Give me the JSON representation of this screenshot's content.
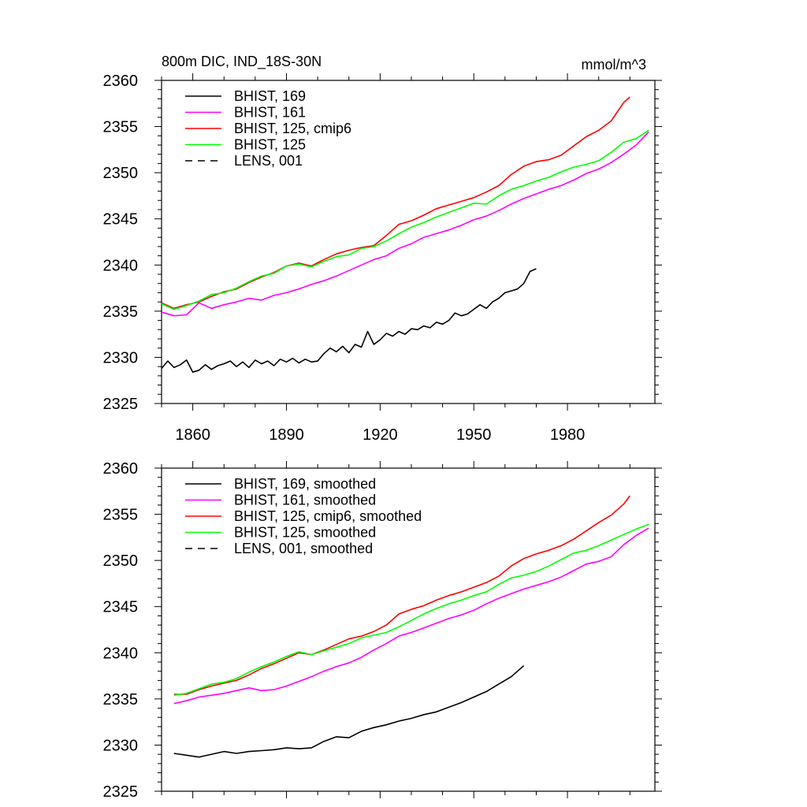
{
  "chart_data": [
    {
      "type": "line",
      "title": "800m DIC, IND_18S-30N",
      "units": "mmol/m^3",
      "xlim": [
        1850,
        2008
      ],
      "ylim": [
        2325,
        2360
      ],
      "x_ticks": [
        1860,
        1890,
        1920,
        1950,
        1980
      ],
      "y_ticks": [
        2325,
        2330,
        2335,
        2340,
        2345,
        2350,
        2355,
        2360
      ],
      "legend_position": "top-left",
      "series": [
        {
          "name": "BHIST, 169",
          "color": "#000000",
          "dash": "solid",
          "x": [
            1850,
            1852,
            1854,
            1856,
            1858,
            1860,
            1862,
            1864,
            1866,
            1868,
            1870,
            1872,
            1874,
            1876,
            1878,
            1880,
            1882,
            1884,
            1886,
            1888,
            1890,
            1892,
            1894,
            1896,
            1898,
            1900,
            1902,
            1904,
            1906,
            1908,
            1910,
            1912,
            1914,
            1916,
            1918,
            1920,
            1922,
            1924,
            1926,
            1928,
            1930,
            1932,
            1934,
            1936,
            1938,
            1940,
            1942,
            1944,
            1946,
            1948,
            1950,
            1952,
            1954,
            1956,
            1958,
            1960,
            1962,
            1964,
            1966,
            1968,
            1970
          ],
          "values": [
            2328.8,
            2329.6,
            2328.9,
            2329.2,
            2329.7,
            2328.4,
            2328.6,
            2329.2,
            2328.7,
            2329.1,
            2329.3,
            2329.6,
            2329.0,
            2329.5,
            2328.9,
            2329.7,
            2329.3,
            2329.6,
            2329.1,
            2329.8,
            2329.5,
            2329.9,
            2329.4,
            2329.8,
            2329.5,
            2329.6,
            2330.4,
            2331.0,
            2330.6,
            2331.2,
            2330.5,
            2331.4,
            2331.1,
            2332.8,
            2331.4,
            2331.9,
            2332.6,
            2332.3,
            2332.8,
            2332.5,
            2333.1,
            2333.0,
            2333.4,
            2333.2,
            2333.8,
            2333.6,
            2334.0,
            2334.8,
            2334.5,
            2334.7,
            2335.2,
            2335.7,
            2335.3,
            2336.0,
            2336.4,
            2337.0,
            2337.2,
            2337.4,
            2338.0,
            2339.3,
            2339.6
          ]
        },
        {
          "name": "BHIST, 161",
          "color": "#ff00ff",
          "dash": "solid",
          "x": [
            1850,
            1854,
            1858,
            1862,
            1866,
            1870,
            1874,
            1878,
            1882,
            1886,
            1890,
            1894,
            1898,
            1902,
            1906,
            1910,
            1914,
            1918,
            1922,
            1926,
            1930,
            1934,
            1938,
            1942,
            1946,
            1950,
            1954,
            1958,
            1962,
            1966,
            1970,
            1974,
            1978,
            1982,
            1986,
            1990,
            1994,
            1998,
            2002,
            2006
          ],
          "values": [
            2334.9,
            2334.5,
            2334.6,
            2335.9,
            2335.3,
            2335.7,
            2336.0,
            2336.4,
            2336.2,
            2336.7,
            2337.0,
            2337.4,
            2337.9,
            2338.3,
            2338.8,
            2339.4,
            2340.0,
            2340.6,
            2341.0,
            2341.8,
            2342.3,
            2343.0,
            2343.4,
            2343.8,
            2344.3,
            2344.9,
            2345.3,
            2345.9,
            2346.6,
            2347.2,
            2347.7,
            2348.2,
            2348.6,
            2349.2,
            2349.9,
            2350.4,
            2351.1,
            2352.0,
            2353.0,
            2354.4
          ]
        },
        {
          "name": "BHIST, 125, cmip6",
          "color": "#ff0000",
          "dash": "solid",
          "x": [
            1850,
            1854,
            1858,
            1862,
            1866,
            1870,
            1874,
            1878,
            1882,
            1886,
            1890,
            1894,
            1898,
            1902,
            1906,
            1910,
            1914,
            1918,
            1922,
            1926,
            1930,
            1934,
            1938,
            1942,
            1946,
            1950,
            1954,
            1958,
            1962,
            1966,
            1970,
            1974,
            1978,
            1982,
            1986,
            1990,
            1994,
            1998,
            2000
          ],
          "values": [
            2335.9,
            2335.3,
            2335.7,
            2336.0,
            2336.6,
            2337.1,
            2337.4,
            2338.1,
            2338.7,
            2339.2,
            2339.9,
            2340.2,
            2339.9,
            2340.6,
            2341.2,
            2341.6,
            2341.9,
            2342.1,
            2343.2,
            2344.4,
            2344.8,
            2345.4,
            2346.1,
            2346.5,
            2346.9,
            2347.3,
            2347.9,
            2348.6,
            2349.8,
            2350.7,
            2351.2,
            2351.4,
            2351.9,
            2352.9,
            2353.9,
            2354.6,
            2355.6,
            2357.6,
            2358.2
          ]
        },
        {
          "name": "BHIST, 125",
          "color": "#00ff00",
          "dash": "solid",
          "x": [
            1850,
            1854,
            1858,
            1862,
            1866,
            1870,
            1874,
            1878,
            1882,
            1886,
            1890,
            1894,
            1898,
            1902,
            1906,
            1910,
            1914,
            1918,
            1922,
            1926,
            1930,
            1934,
            1938,
            1942,
            1946,
            1950,
            1954,
            1958,
            1962,
            1966,
            1970,
            1974,
            1978,
            1982,
            1986,
            1990,
            1994,
            1998,
            2002,
            2006
          ],
          "values": [
            2335.8,
            2335.2,
            2335.6,
            2336.1,
            2336.8,
            2337.0,
            2337.5,
            2338.2,
            2338.8,
            2339.1,
            2339.9,
            2340.1,
            2339.8,
            2340.4,
            2340.9,
            2341.1,
            2341.8,
            2342.0,
            2342.6,
            2343.4,
            2344.1,
            2344.6,
            2345.2,
            2345.7,
            2346.2,
            2346.7,
            2346.6,
            2347.5,
            2348.2,
            2348.6,
            2349.1,
            2349.5,
            2350.1,
            2350.6,
            2350.9,
            2351.3,
            2352.2,
            2353.3,
            2353.7,
            2354.6
          ]
        },
        {
          "name": "LENS, 001",
          "color": "#000000",
          "dash": "dashed",
          "x": [],
          "values": []
        }
      ]
    },
    {
      "type": "line",
      "title": "",
      "units": "",
      "xlim": [
        1850,
        2008
      ],
      "ylim": [
        2325,
        2360
      ],
      "x_ticks": [
        1860,
        1890,
        1920,
        1950,
        1980
      ],
      "y_ticks": [
        2325,
        2330,
        2335,
        2340,
        2345,
        2350,
        2355,
        2360
      ],
      "legend_position": "top-left",
      "series": [
        {
          "name": "BHIST, 169, smoothed",
          "color": "#000000",
          "dash": "solid",
          "x": [
            1854,
            1858,
            1862,
            1866,
            1870,
            1874,
            1878,
            1882,
            1886,
            1890,
            1894,
            1898,
            1902,
            1906,
            1910,
            1914,
            1918,
            1922,
            1926,
            1930,
            1934,
            1938,
            1942,
            1946,
            1950,
            1954,
            1958,
            1962,
            1966
          ],
          "values": [
            2329.1,
            2328.9,
            2328.7,
            2329.0,
            2329.3,
            2329.1,
            2329.3,
            2329.4,
            2329.5,
            2329.7,
            2329.6,
            2329.7,
            2330.4,
            2330.9,
            2330.8,
            2331.5,
            2331.9,
            2332.2,
            2332.6,
            2332.9,
            2333.3,
            2333.6,
            2334.1,
            2334.6,
            2335.2,
            2335.8,
            2336.6,
            2337.4,
            2338.6
          ]
        },
        {
          "name": "BHIST, 161, smoothed",
          "color": "#ff00ff",
          "dash": "solid",
          "x": [
            1854,
            1858,
            1862,
            1866,
            1870,
            1874,
            1878,
            1882,
            1886,
            1890,
            1894,
            1898,
            1902,
            1906,
            1910,
            1914,
            1918,
            1922,
            1926,
            1930,
            1934,
            1938,
            1942,
            1946,
            1950,
            1954,
            1958,
            1962,
            1966,
            1970,
            1974,
            1978,
            1982,
            1986,
            1990,
            1994,
            1998,
            2002,
            2006
          ],
          "values": [
            2334.5,
            2334.8,
            2335.2,
            2335.4,
            2335.6,
            2335.9,
            2336.2,
            2335.9,
            2336.0,
            2336.4,
            2336.9,
            2337.4,
            2338.0,
            2338.5,
            2338.9,
            2339.5,
            2340.3,
            2341.0,
            2341.8,
            2342.2,
            2342.7,
            2343.2,
            2343.7,
            2344.1,
            2344.6,
            2345.3,
            2345.9,
            2346.4,
            2346.9,
            2347.3,
            2347.7,
            2348.2,
            2348.9,
            2349.6,
            2349.9,
            2350.4,
            2351.7,
            2352.7,
            2353.5
          ]
        },
        {
          "name": "BHIST, 125, cmip6, smoothed",
          "color": "#ff0000",
          "dash": "solid",
          "x": [
            1854,
            1858,
            1862,
            1866,
            1870,
            1874,
            1878,
            1882,
            1886,
            1890,
            1894,
            1898,
            1902,
            1906,
            1910,
            1914,
            1918,
            1922,
            1926,
            1930,
            1934,
            1938,
            1942,
            1946,
            1950,
            1954,
            1958,
            1962,
            1966,
            1970,
            1974,
            1978,
            1982,
            1986,
            1990,
            1994,
            1998,
            2000
          ],
          "values": [
            2335.5,
            2335.5,
            2336.0,
            2336.4,
            2336.7,
            2337.0,
            2337.6,
            2338.3,
            2338.8,
            2339.4,
            2340.0,
            2339.8,
            2340.3,
            2340.9,
            2341.5,
            2341.8,
            2342.3,
            2343.0,
            2344.2,
            2344.7,
            2345.1,
            2345.7,
            2346.2,
            2346.6,
            2347.1,
            2347.6,
            2348.3,
            2349.4,
            2350.2,
            2350.7,
            2351.1,
            2351.6,
            2352.3,
            2353.2,
            2354.1,
            2354.9,
            2356.1,
            2357.0
          ]
        },
        {
          "name": "BHIST, 125, smoothed",
          "color": "#00ff00",
          "dash": "solid",
          "x": [
            1854,
            1858,
            1862,
            1866,
            1870,
            1874,
            1878,
            1882,
            1886,
            1890,
            1894,
            1898,
            1902,
            1906,
            1910,
            1914,
            1918,
            1922,
            1926,
            1930,
            1934,
            1938,
            1942,
            1946,
            1950,
            1954,
            1958,
            1962,
            1966,
            1970,
            1974,
            1978,
            1982,
            1986,
            1990,
            1994,
            1998,
            2002,
            2006
          ],
          "values": [
            2335.4,
            2335.6,
            2336.1,
            2336.6,
            2336.8,
            2337.2,
            2337.9,
            2338.5,
            2339.0,
            2339.6,
            2340.1,
            2339.8,
            2340.2,
            2340.6,
            2341.0,
            2341.6,
            2341.9,
            2342.2,
            2342.8,
            2343.5,
            2344.2,
            2344.8,
            2345.3,
            2345.7,
            2346.2,
            2346.6,
            2347.4,
            2348.1,
            2348.4,
            2348.8,
            2349.4,
            2350.1,
            2350.8,
            2351.1,
            2351.6,
            2352.2,
            2352.8,
            2353.4,
            2353.9
          ]
        },
        {
          "name": "LENS, 001, smoothed",
          "color": "#000000",
          "dash": "dashed",
          "x": [],
          "values": []
        }
      ]
    }
  ]
}
